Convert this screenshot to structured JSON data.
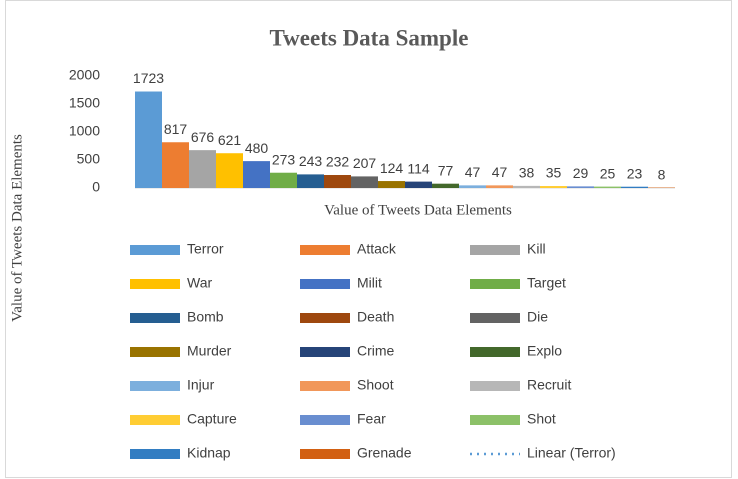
{
  "chart_data": {
    "type": "bar",
    "title": "Tweets Data Sample",
    "x_label": "Value of Tweets Data Elements",
    "y_label": "Value of Tweets Data Elements",
    "categories": [
      null
    ],
    "series": [
      {
        "name": "Terror",
        "color": "#5B9BD5",
        "values": [
          1723
        ]
      },
      {
        "name": "Attack",
        "color": "#ED7D31",
        "values": [
          817
        ]
      },
      {
        "name": "Kill",
        "color": "#A5A5A5",
        "values": [
          676
        ]
      },
      {
        "name": "War",
        "color": "#FFC000",
        "values": [
          621
        ]
      },
      {
        "name": "Milit",
        "color": "#4472C4",
        "values": [
          480
        ]
      },
      {
        "name": "Target",
        "color": "#70AD47",
        "values": [
          273
        ]
      },
      {
        "name": "Bomb",
        "color": "#255E91",
        "values": [
          243
        ]
      },
      {
        "name": "Death",
        "color": "#9E480E",
        "values": [
          232
        ]
      },
      {
        "name": "Die",
        "color": "#636363",
        "values": [
          207
        ]
      },
      {
        "name": "Murder",
        "color": "#997300",
        "values": [
          124
        ]
      },
      {
        "name": "Crime",
        "color": "#264478",
        "values": [
          114
        ]
      },
      {
        "name": "Explo",
        "color": "#43682B",
        "values": [
          77
        ]
      },
      {
        "name": "Injur",
        "color": "#7CAFDD",
        "values": [
          47
        ]
      },
      {
        "name": "Shoot",
        "color": "#F1975A",
        "values": [
          47
        ]
      },
      {
        "name": "Recruit",
        "color": "#B7B7B7",
        "values": [
          38
        ]
      },
      {
        "name": "Capture",
        "color": "#FFCD33",
        "values": [
          35
        ]
      },
      {
        "name": "Fear",
        "color": "#698ED0",
        "values": [
          29
        ]
      },
      {
        "name": "Shot",
        "color": "#8CC168",
        "values": [
          25
        ]
      },
      {
        "name": "Kidnap",
        "color": "#327DC2",
        "values": [
          23
        ]
      },
      {
        "name": "Grenade",
        "color": "#D26012",
        "values": [
          8
        ]
      }
    ],
    "trendline": {
      "name": "Linear (Terror)",
      "color": "#5B9BD5"
    },
    "ylim": [
      0,
      2000
    ],
    "yticks": [
      0,
      500,
      1000,
      1500,
      2000
    ],
    "grid": false
  }
}
